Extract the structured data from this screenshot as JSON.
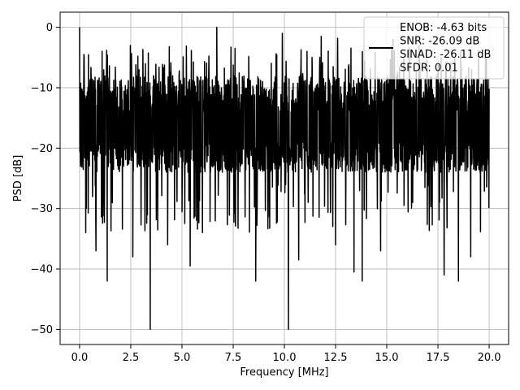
{
  "chart_data": {
    "type": "line",
    "xlabel": "Frequency [MHz]",
    "ylabel": "PSD [dB]",
    "xlim": [
      -0.95,
      20.95
    ],
    "ylim": [
      -52.5,
      2.5
    ],
    "xticks": [
      0.0,
      2.5,
      5.0,
      7.5,
      10.0,
      12.5,
      15.0,
      17.5,
      20.0
    ],
    "xtick_labels": [
      "0.0",
      "2.5",
      "5.0",
      "7.5",
      "10.0",
      "12.5",
      "15.0",
      "17.5",
      "20.0"
    ],
    "yticks": [
      0,
      -10,
      -20,
      -30,
      -40,
      -50
    ],
    "ytick_labels": [
      "0",
      "−10",
      "−20",
      "−30",
      "−40",
      "−50"
    ],
    "grid": true,
    "legend": {
      "placement": "top-right",
      "line_color": "#000000",
      "entries": [
        "ENOB: -4.63 bits",
        "SNR: -26.09 dB",
        "SINAD: -26.11 dB",
        "SFDR: 0.01"
      ]
    },
    "series": [
      {
        "color": "#000000",
        "x_range": [
          0.0,
          20.0
        ],
        "band_high_db": -8.0,
        "band_low_db": -24.0,
        "peaks": [
          {
            "x": 0.0,
            "y": 0.0
          },
          {
            "x": 6.7,
            "y": 0.0
          },
          {
            "x": 9.9,
            "y": -1.0
          },
          {
            "x": 11.8,
            "y": -1.5
          },
          {
            "x": 12.6,
            "y": -1.8
          },
          {
            "x": 15.3,
            "y": -2.0
          }
        ],
        "dips": [
          {
            "x": 0.3,
            "y": -34.0
          },
          {
            "x": 0.8,
            "y": -37.0
          },
          {
            "x": 1.35,
            "y": -42.0
          },
          {
            "x": 2.6,
            "y": -38.0
          },
          {
            "x": 3.45,
            "y": -50.0
          },
          {
            "x": 4.3,
            "y": -36.0
          },
          {
            "x": 5.4,
            "y": -39.5
          },
          {
            "x": 6.0,
            "y": -34.0
          },
          {
            "x": 8.6,
            "y": -42.0
          },
          {
            "x": 10.2,
            "y": -50.0
          },
          {
            "x": 10.7,
            "y": -38.5
          },
          {
            "x": 12.5,
            "y": -36.0
          },
          {
            "x": 13.4,
            "y": -40.5
          },
          {
            "x": 13.8,
            "y": -42.0
          },
          {
            "x": 14.7,
            "y": -37.0
          },
          {
            "x": 17.8,
            "y": -41.0
          },
          {
            "x": 18.5,
            "y": -42.0
          },
          {
            "x": 19.1,
            "y": -38.0
          }
        ]
      }
    ]
  }
}
